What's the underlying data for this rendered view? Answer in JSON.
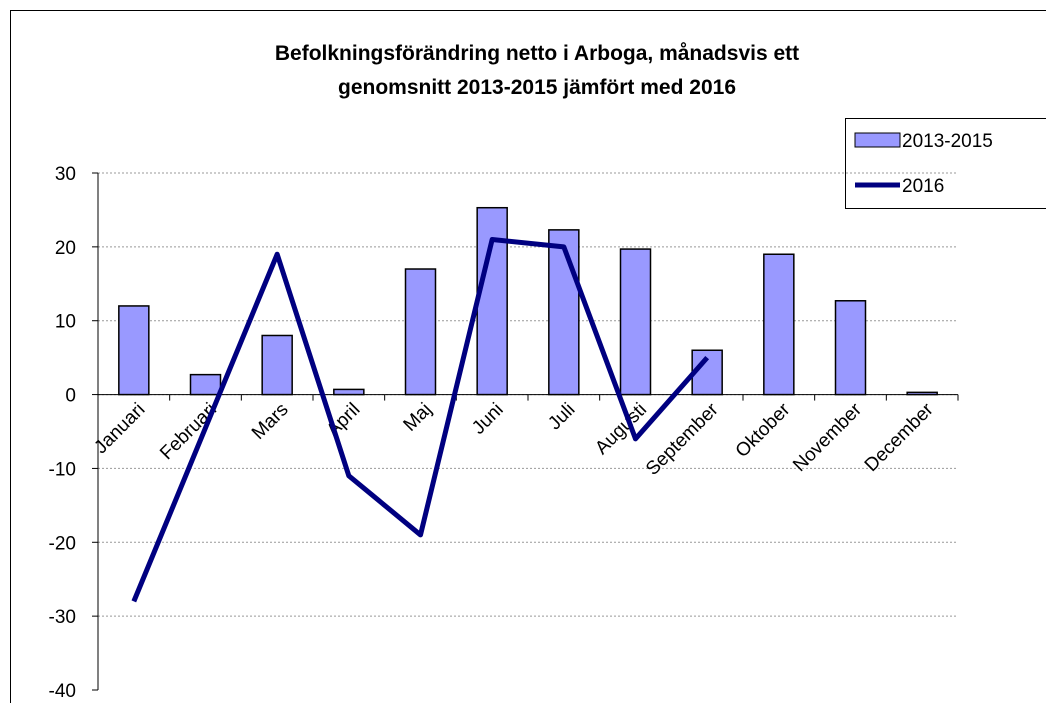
{
  "chart_data": {
    "type": "bar_line",
    "title": "Befolkningsförändring netto i Arboga, månadsvis ett",
    "subtitle": "genomsnitt 2013-2015 jämfört med 2016",
    "categories": [
      "Januari",
      "Februari",
      "Mars",
      "April",
      "Maj",
      "Juni",
      "Juli",
      "Augusti",
      "September",
      "Oktober",
      "November",
      "December"
    ],
    "series": [
      {
        "name": "2013-2015",
        "type": "bar",
        "color": "#9999ff",
        "values": [
          12,
          2.7,
          8,
          0.7,
          17,
          25.3,
          22.3,
          19.7,
          6,
          19,
          12.7,
          0.3
        ]
      },
      {
        "name": "2016",
        "type": "line",
        "color": "#000080",
        "values": [
          -28,
          -4.5,
          19,
          -11,
          -19,
          21,
          20,
          -6,
          5,
          null,
          null,
          null
        ]
      }
    ],
    "ylim": [
      -40,
      30
    ],
    "yticks": [
      -40,
      -30,
      -20,
      -10,
      0,
      10,
      20,
      30
    ],
    "grid": true,
    "legend": "top-right"
  }
}
